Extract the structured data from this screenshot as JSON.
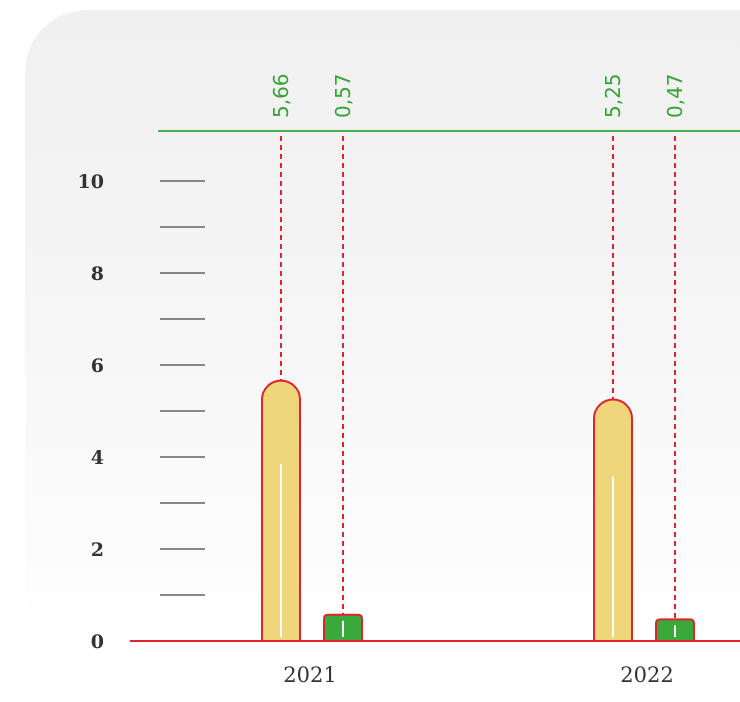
{
  "chart_data": {
    "type": "bar",
    "categories": [
      "2021",
      "2022"
    ],
    "series": [
      {
        "values": [
          5.66,
          5.25
        ],
        "color": "#f0d67a"
      },
      {
        "values": [
          0.57,
          0.47
        ],
        "color": "#3ba83b"
      }
    ],
    "data_labels": [
      [
        "5,66",
        "0,57"
      ],
      [
        "5,25",
        "0,47"
      ]
    ],
    "y_ticks": [
      "0",
      "2",
      "4",
      "6",
      "8",
      "10"
    ],
    "ylim": [
      0,
      10
    ],
    "title": "",
    "xlabel": "",
    "ylabel": "",
    "grid": false,
    "colors": {
      "outline": "#e0232e",
      "label": "#35a535",
      "guide": "#e0232e",
      "top_line": "#4caf50",
      "tick": "#333333"
    }
  }
}
